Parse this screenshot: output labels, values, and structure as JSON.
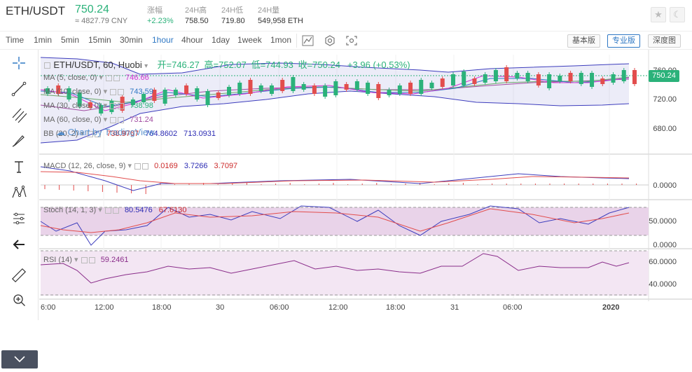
{
  "header": {
    "pair": "ETH/USDT",
    "last_price": "750.24",
    "cny": "≈ 4827.79 CNY",
    "stats": [
      {
        "label": "涨幅",
        "value": "+2.23%"
      },
      {
        "label": "24H高",
        "value": "758.50"
      },
      {
        "label": "24H低",
        "value": "719.80"
      },
      {
        "label": "24H量",
        "value": "549,958 ETH"
      }
    ],
    "star_icon": "star-icon",
    "theme_icon": "moon-icon"
  },
  "toolbar": {
    "timeframes": [
      "Time",
      "1min",
      "5min",
      "15min",
      "30min",
      "1hour",
      "4hour",
      "1day",
      "1week",
      "1mon"
    ],
    "active_timeframe": "1hour",
    "versions": [
      "基本版",
      "专业版",
      "深度图"
    ],
    "active_version": "专业版"
  },
  "legend": {
    "title": "ETH/USDT, 60, Huobi",
    "open": "开=746.27",
    "high": "高=752.07",
    "low": "低=744.93",
    "close": "收=750.24",
    "change": "+3.96 (+0.53%)",
    "ma5_label": "MA (5, close, 0)",
    "ma5_value": "746.66",
    "ma10_label": "MA (10, close, 0)",
    "ma10_value": "743.59",
    "ma30_label": "MA (30, close, 0)",
    "ma30_value": "738.98",
    "ma60_label": "MA (60, close, 0)",
    "ma60_value": "731.24",
    "bb_label": "BB (20, 2)",
    "bb_v1": "738.9767",
    "bb_v2": "764.8602",
    "bb_v3": "713.0931",
    "watermark": "Chart by TradingView",
    "macd_label": "MACD (12, 26, close, 9)",
    "macd_v1": "0.0169",
    "macd_v2": "3.7266",
    "macd_v3": "3.7097",
    "stoch_label": "Stoch (14, 1, 3)",
    "stoch_v1": "80.5476",
    "stoch_v2": "67.6130",
    "rsi_label": "RSI (14)",
    "rsi_v1": "59.2461"
  },
  "axes": {
    "price": [
      "760.00",
      "720.00",
      "680.00"
    ],
    "current_price": "750.24",
    "macd": [
      "0.0000"
    ],
    "stoch": [
      "50.0000",
      "0.0000"
    ],
    "rsi": [
      "60.0000",
      "40.0000"
    ],
    "time": [
      "6:00",
      "12:00",
      "18:00",
      "30",
      "06:00",
      "12:00",
      "18:00",
      "31",
      "06:00",
      "2020"
    ]
  },
  "colors": {
    "up": "#2bb27a",
    "down": "#e24d4d",
    "accent": "#2f78c4"
  }
}
